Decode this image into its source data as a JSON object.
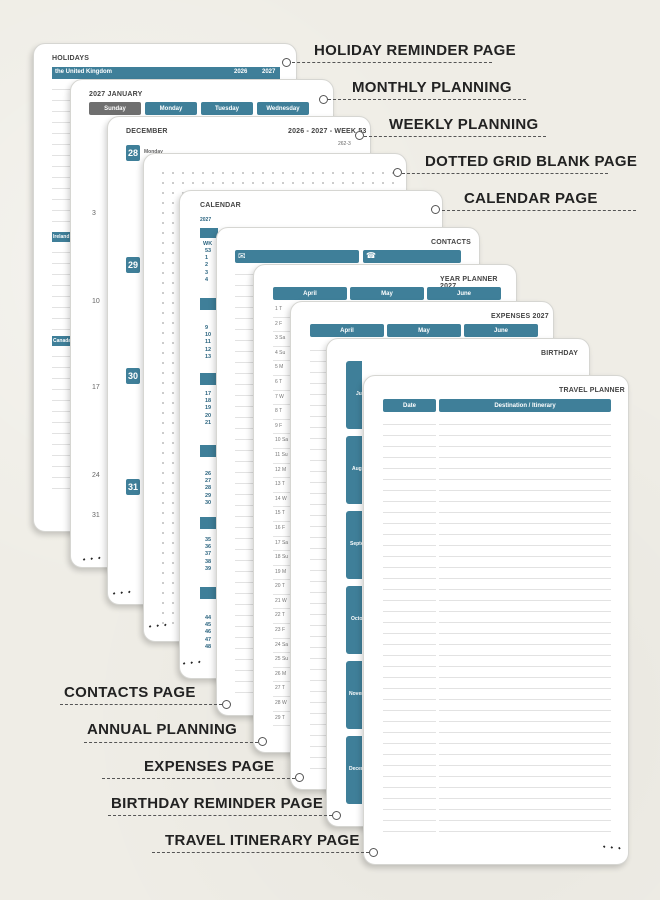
{
  "labels": {
    "holiday": "HOLIDAY REMINDER PAGE",
    "monthly": "MONTHLY PLANNING",
    "weekly": "WEEKLY PLANNING",
    "dotted": "DOTTED GRID BLANK PAGE",
    "calendar": "CALENDAR PAGE",
    "contacts": "CONTACTS PAGE",
    "annual": "ANNUAL PLANNING",
    "expenses": "EXPENSES PAGE",
    "birthday": "BIRTHDAY REMINDER PAGE",
    "travel": "TRAVEL ITINERARY PAGE"
  },
  "holidays": {
    "title": "HOLIDAYS",
    "country": "the United Kingdom",
    "years": [
      "2026",
      "2027"
    ],
    "section2": "Ireland",
    "section3": "Canada"
  },
  "monthly": {
    "title": "2027 JANUARY",
    "days": [
      "Sunday",
      "Monday",
      "Tuesday",
      "Wednesday"
    ],
    "dates": [
      "3",
      "10",
      "17",
      "24",
      "31"
    ]
  },
  "weekly": {
    "title": "DECEMBER",
    "week": "2026 - 2027 - WEEK 53",
    "subweek": "262-3",
    "dates": [
      "28",
      "29",
      "30",
      "31"
    ],
    "day": "Monday"
  },
  "calendar": {
    "title": "CALENDAR",
    "year": "2027",
    "wk": "WK",
    "blocks": [
      [
        "53",
        "1",
        "2",
        "3",
        "4"
      ],
      [
        "9",
        "10",
        "11",
        "12",
        "13"
      ],
      [
        "17",
        "18",
        "19",
        "20",
        "21"
      ],
      [
        "26",
        "27",
        "28",
        "29",
        "30"
      ],
      [
        "35",
        "36",
        "37",
        "38",
        "39"
      ],
      [
        "44",
        "45",
        "46",
        "47",
        "48"
      ]
    ]
  },
  "contacts": {
    "title": "CONTACTS"
  },
  "yearplanner": {
    "title": "YEAR PLANNER 2027",
    "months": [
      "April",
      "May",
      "June"
    ],
    "rows": [
      "1 T",
      "2 F",
      "3 Sa",
      "4 Su",
      "5 M",
      "6 T",
      "7 W",
      "8 T",
      "9 F",
      "10 Sa",
      "11 Su",
      "12 M",
      "13 T",
      "14 W",
      "15 T",
      "16 F",
      "17 Sa",
      "18 Su",
      "19 M",
      "20 T",
      "21 W",
      "22 T",
      "23 F",
      "24 Sa",
      "25 Su",
      "26 M",
      "27 T",
      "28 W",
      "29 T"
    ]
  },
  "expenses": {
    "title": "EXPENSES 2027",
    "months": [
      "April",
      "May",
      "June"
    ]
  },
  "birthday": {
    "title": "BIRTHDAY",
    "months": [
      "July",
      "August",
      "September",
      "October",
      "November",
      "December"
    ],
    "abbrev": [
      "Ju",
      "Augu",
      "Septe",
      "Octo",
      "Nover",
      "Decer"
    ]
  },
  "travel": {
    "title": "TRAVEL PLANNER",
    "col_date": "Date",
    "col_dest": "Destination / Itinerary"
  },
  "colors": {
    "teal": "#3f7f99",
    "background": "#efede6"
  }
}
